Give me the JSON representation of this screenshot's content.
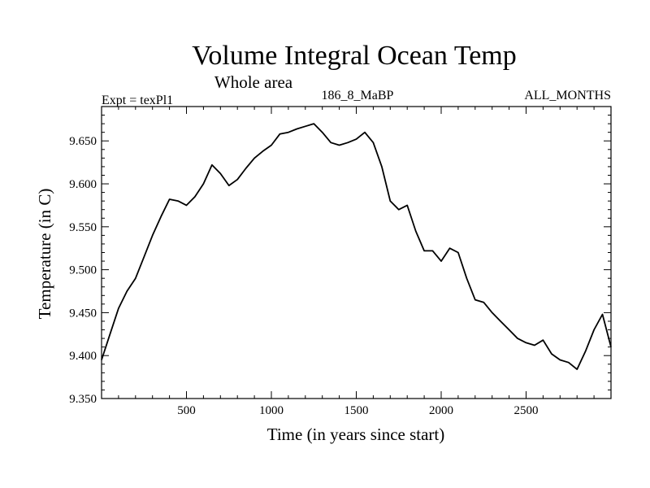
{
  "chart_data": {
    "type": "line",
    "title": "Volume Integral Ocean Temp",
    "subtitle": "Whole area",
    "annotations": {
      "left": "Expt = texPl1",
      "center": "186_8_MaBP",
      "right": "ALL_MONTHS"
    },
    "xlabel": "Time (in years since start)",
    "ylabel": "Temperature (in C)",
    "xlim": [
      0,
      3000
    ],
    "ylim": [
      9.35,
      9.69
    ],
    "xticks": [
      500,
      1000,
      1500,
      2000,
      2500
    ],
    "xtick_labels": [
      "500",
      "1000",
      "1500",
      "2000",
      "2500"
    ],
    "yticks": [
      9.35,
      9.4,
      9.45,
      9.5,
      9.55,
      9.6,
      9.65
    ],
    "ytick_labels": [
      "9.350",
      "9.400",
      "9.450",
      "9.500",
      "9.550",
      "9.600",
      "9.650"
    ],
    "grid": false,
    "series": [
      {
        "color": "#000000",
        "x": [
          0,
          50,
          100,
          150,
          200,
          250,
          300,
          350,
          400,
          450,
          500,
          550,
          600,
          650,
          700,
          750,
          800,
          850,
          900,
          950,
          1000,
          1050,
          1100,
          1150,
          1200,
          1250,
          1300,
          1350,
          1400,
          1450,
          1500,
          1550,
          1600,
          1650,
          1700,
          1750,
          1800,
          1850,
          1900,
          1950,
          2000,
          2050,
          2100,
          2150,
          2200,
          2250,
          2300,
          2350,
          2400,
          2450,
          2500,
          2550,
          2600,
          2650,
          2700,
          2750,
          2800,
          2850,
          2900,
          2950,
          3000
        ],
        "y": [
          9.395,
          9.425,
          9.455,
          9.475,
          9.49,
          9.515,
          9.54,
          9.562,
          9.582,
          9.58,
          9.575,
          9.585,
          9.6,
          9.622,
          9.612,
          9.598,
          9.605,
          9.618,
          9.63,
          9.638,
          9.645,
          9.658,
          9.66,
          9.664,
          9.667,
          9.67,
          9.66,
          9.648,
          9.645,
          9.648,
          9.652,
          9.66,
          9.648,
          9.62,
          9.58,
          9.57,
          9.575,
          9.545,
          9.522,
          9.522,
          9.51,
          9.525,
          9.52,
          9.49,
          9.465,
          9.462,
          9.45,
          9.44,
          9.43,
          9.42,
          9.415,
          9.412,
          9.418,
          9.402,
          9.395,
          9.392,
          9.384,
          9.405,
          9.43,
          9.448,
          9.41
        ]
      }
    ]
  }
}
